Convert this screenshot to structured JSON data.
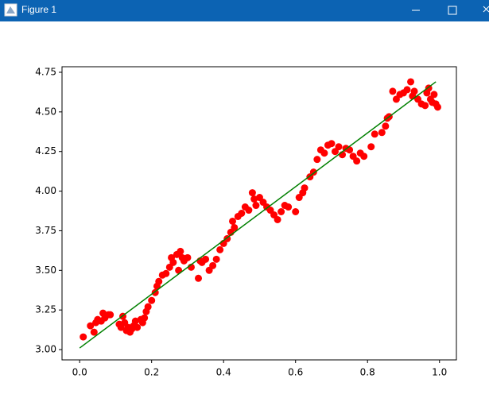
{
  "window": {
    "title": "Figure 1"
  },
  "chart_data": {
    "type": "scatter",
    "x": [
      0.01,
      0.03,
      0.04,
      0.045,
      0.05,
      0.06,
      0.065,
      0.07,
      0.08,
      0.085,
      0.11,
      0.115,
      0.12,
      0.125,
      0.13,
      0.135,
      0.14,
      0.145,
      0.15,
      0.155,
      0.16,
      0.17,
      0.175,
      0.18,
      0.185,
      0.19,
      0.2,
      0.21,
      0.215,
      0.22,
      0.23,
      0.24,
      0.25,
      0.255,
      0.26,
      0.27,
      0.275,
      0.28,
      0.285,
      0.29,
      0.3,
      0.31,
      0.33,
      0.335,
      0.34,
      0.35,
      0.36,
      0.37,
      0.38,
      0.39,
      0.4,
      0.41,
      0.42,
      0.425,
      0.43,
      0.44,
      0.45,
      0.46,
      0.47,
      0.48,
      0.485,
      0.49,
      0.5,
      0.51,
      0.52,
      0.53,
      0.54,
      0.55,
      0.56,
      0.57,
      0.58,
      0.6,
      0.61,
      0.62,
      0.625,
      0.64,
      0.65,
      0.66,
      0.67,
      0.68,
      0.69,
      0.7,
      0.71,
      0.72,
      0.73,
      0.74,
      0.75,
      0.76,
      0.77,
      0.78,
      0.79,
      0.81,
      0.82,
      0.84,
      0.85,
      0.855,
      0.86,
      0.87,
      0.88,
      0.89,
      0.9,
      0.91,
      0.92,
      0.925,
      0.93,
      0.94,
      0.95,
      0.96,
      0.965,
      0.97,
      0.975,
      0.98,
      0.985,
      0.99,
      0.995
    ],
    "y": [
      3.08,
      3.15,
      3.11,
      3.17,
      3.19,
      3.18,
      3.23,
      3.2,
      3.22,
      3.22,
      3.16,
      3.14,
      3.21,
      3.17,
      3.12,
      3.14,
      3.11,
      3.13,
      3.15,
      3.18,
      3.14,
      3.19,
      3.17,
      3.2,
      3.24,
      3.27,
      3.31,
      3.36,
      3.4,
      3.43,
      3.47,
      3.48,
      3.52,
      3.58,
      3.55,
      3.6,
      3.5,
      3.62,
      3.58,
      3.56,
      3.58,
      3.52,
      3.45,
      3.56,
      3.55,
      3.57,
      3.5,
      3.53,
      3.57,
      3.63,
      3.67,
      3.7,
      3.74,
      3.81,
      3.77,
      3.84,
      3.86,
      3.9,
      3.88,
      3.99,
      3.95,
      3.91,
      3.96,
      3.93,
      3.9,
      3.88,
      3.85,
      3.82,
      3.87,
      3.91,
      3.9,
      3.87,
      3.96,
      3.99,
      4.02,
      4.09,
      4.12,
      4.2,
      4.26,
      4.24,
      4.29,
      4.3,
      4.25,
      4.28,
      4.23,
      4.27,
      4.26,
      4.22,
      4.19,
      4.24,
      4.22,
      4.28,
      4.36,
      4.37,
      4.41,
      4.46,
      4.47,
      4.63,
      4.58,
      4.61,
      4.62,
      4.64,
      4.69,
      4.6,
      4.63,
      4.58,
      4.55,
      4.54,
      4.62,
      4.65,
      4.58,
      4.56,
      4.61,
      4.55,
      4.53
    ],
    "color": "#ff0000",
    "fit_line": {
      "x": [
        0.0,
        0.99
      ],
      "y": [
        3.01,
        4.69
      ],
      "color": "#008000"
    },
    "xlim": [
      -0.049,
      1.047
    ],
    "ylim": [
      2.935,
      4.785
    ],
    "xticks": [
      {
        "value": 0,
        "label": "0.0"
      },
      0.2,
      0.4,
      0.6,
      0.8,
      {
        "value": 1,
        "label": "1.0"
      }
    ],
    "yticks": [
      {
        "value": 3,
        "label": "3.00"
      },
      3.25,
      {
        "value": 3.5,
        "label": "3.50"
      },
      3.75,
      {
        "value": 4,
        "label": "4.00"
      },
      4.25,
      {
        "value": 4.5,
        "label": "4.50"
      },
      4.75
    ]
  }
}
